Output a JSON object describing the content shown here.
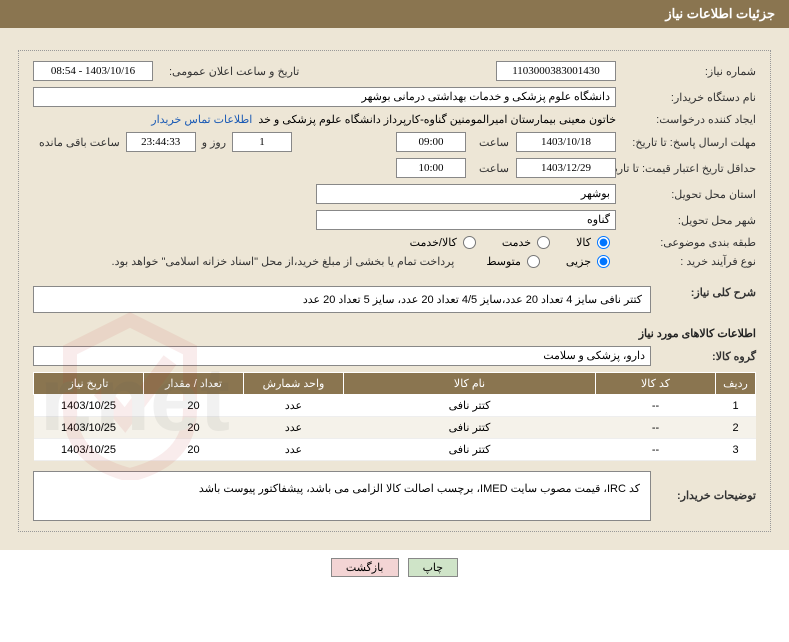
{
  "header": {
    "title": "جزئیات اطلاعات نیاز"
  },
  "fields": {
    "request_no_label": "شماره نیاز:",
    "request_no": "1103000383001430",
    "announce_dt_label": "تاریخ و ساعت اعلان عمومی:",
    "announce_dt": "1403/10/16 - 08:54",
    "buyer_org_label": "نام دستگاه خریدار:",
    "buyer_org": "دانشگاه علوم پزشکی و خدمات بهداشتی درمانی بوشهر",
    "requester_label": "ایجاد کننده درخواست:",
    "requester": "خاتون معینی بیمارستان امیرالمومنین گناوه-کارپرداز دانشگاه علوم پزشکی و خد",
    "buyer_contact_link": "اطلاعات تماس خریدار",
    "reply_until_label": "مهلت ارسال پاسخ: تا تاریخ:",
    "reply_until_date": "1403/10/18",
    "time_label": "ساعت",
    "reply_until_time": "09:00",
    "days_remain": "1",
    "days_remain_label": "روز و",
    "countdown": "23:44:33",
    "countdown_label": "ساعت باقی مانده",
    "valid_until_label": "حداقل تاریخ اعتبار قیمت: تا تاریخ:",
    "valid_until_date": "1403/12/29",
    "valid_until_time": "10:00",
    "province_label": "استان محل تحویل:",
    "province": "بوشهر",
    "city_label": "شهر محل تحویل:",
    "city": "گناوه",
    "category_label": "طبقه بندی موضوعی:",
    "cat_goods": "کالا",
    "cat_service": "خدمت",
    "cat_both": "کالا/خدمت",
    "purchase_type_label": "نوع فرآیند خرید :",
    "pt_small": "جزیی",
    "pt_medium": "متوسط",
    "purchase_note": "پرداخت تمام یا بخشی از مبلغ خرید،از محل \"اسناد خزانه اسلامی\" خواهد بود.",
    "summary_label": "شرح کلی نیاز:",
    "summary": "کتتر نافی سایز 4 تعداد 20 عدد،سایز 4/5 تعداد 20 عدد، سایز 5 تعداد 20 عدد",
    "items_title": "اطلاعات کالاهای مورد نیاز",
    "group_label": "گروه کالا:",
    "group": "دارو، پزشکی و سلامت",
    "buyer_notes_label": "توضیحات خریدار:",
    "buyer_notes": "کد IRC، قیمت مصوب سایت IMED، برچسب اصالت کالا الزامی می باشد، پیشفاکتور پیوست باشد"
  },
  "table": {
    "headers": {
      "row": "ردیف",
      "code": "کد کالا",
      "name": "نام کالا",
      "unit": "واحد شمارش",
      "qty": "تعداد / مقدار",
      "date": "تاریخ نیاز"
    },
    "col_widths": {
      "row": "40px",
      "code": "120px",
      "name": "auto",
      "unit": "100px",
      "qty": "100px",
      "date": "110px"
    },
    "rows": [
      {
        "n": "1",
        "code": "--",
        "name": "کتتر نافی",
        "unit": "عدد",
        "qty": "20",
        "date": "1403/10/25"
      },
      {
        "n": "2",
        "code": "--",
        "name": "کتتر نافی",
        "unit": "عدد",
        "qty": "20",
        "date": "1403/10/25"
      },
      {
        "n": "3",
        "code": "--",
        "name": "کتتر نافی",
        "unit": "عدد",
        "qty": "20",
        "date": "1403/10/25"
      }
    ]
  },
  "buttons": {
    "print": "چاپ",
    "back": "بازگشت"
  },
  "colors": {
    "header_bg": "#8a7550",
    "panel_bg": "#ede6d6",
    "link": "#1a5ab5",
    "btn_print_bg": "#cfe4c8",
    "btn_back_bg": "#f3d4d4"
  },
  "radio_state": {
    "category": "goods",
    "purchase_type": "small"
  }
}
